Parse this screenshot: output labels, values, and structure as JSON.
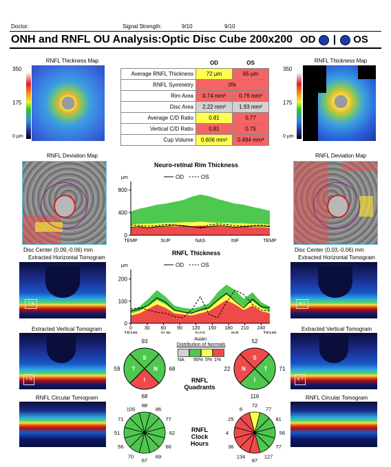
{
  "header": {
    "doctor_label": "Doctor:",
    "signal_label": "Signal Strength:",
    "signal_od": "9/10",
    "signal_os": "9/10",
    "title": "ONH and RNFL OU Analysis:Optic Disc Cube 200x200",
    "od": "OD",
    "os": "OS"
  },
  "thickness_map": {
    "title": "RNFL Thickness Map",
    "scale": [
      "350",
      "175",
      "0 µm"
    ]
  },
  "params": {
    "col_od": "OD",
    "col_os": "OS",
    "rows": [
      {
        "label": "Average RNFL Thickness",
        "od": "72 µm",
        "os": "65 µm",
        "od_color": "#ffff50",
        "os_color": "#f36464"
      },
      {
        "label": "RNFL Symmetry",
        "merged": "0%",
        "color": "#f36464"
      },
      {
        "label": "Rim Area",
        "od": "0.74 mm²",
        "os": "0.76 mm²",
        "od_color": "#f36464",
        "os_color": "#f36464"
      },
      {
        "label": "Disc Area",
        "od": "2.22 mm²",
        "os": "1.93 mm²",
        "od_color": "#d2d2d2",
        "os_color": "#d2d2d2"
      },
      {
        "label": "Average C/D Ratio",
        "od": "0.81",
        "os": "0.77",
        "od_color": "#ffff50",
        "os_color": "#f36464"
      },
      {
        "label": "Vertical C/D Ratio",
        "od": "0.81",
        "os": "0.75",
        "od_color": "#f36464",
        "os_color": "#f36464"
      },
      {
        "label": "Cup Volume",
        "od": "0.606 mm³",
        "os": "0.494 mm³",
        "od_color": "#ffff50",
        "os_color": "#f36464"
      }
    ]
  },
  "deviation": {
    "title": "RNFL Deviation Map",
    "od_center": "Disc Center  (0.09,-0.06) mm",
    "os_center": "Disc Center  (0.03,-0.06) mm"
  },
  "tomograms": {
    "horizontal": "Extracted Horizontal Tomogram",
    "vertical": "Extracted Vertical Tomogram",
    "circular": "RNFL Circular Tomogram",
    "h_letters": [
      "T",
      "N"
    ],
    "h_letters_os": [
      "N",
      "T"
    ],
    "v_letters": [
      "T",
      "N"
    ]
  },
  "rim_chart": {
    "title": "Neuro-retinal Rim Thickness",
    "unit": "µm",
    "legend_od": "OD",
    "legend_os": "OS",
    "y_ticks": [
      "800",
      "400",
      "0"
    ],
    "x_ticks": [
      "TEMP",
      "SUP",
      "NAS",
      "INF",
      "TEMP"
    ]
  },
  "rnfl_chart": {
    "title": "RNFL Thickness",
    "unit": "µm",
    "legend_od": "OD",
    "legend_os": "OS",
    "y_ticks": [
      "200",
      "100",
      "0"
    ],
    "x_numbers": [
      "0",
      "30",
      "60",
      "90",
      "120",
      "150",
      "180",
      "210",
      "240"
    ],
    "x_ticks": [
      "TEMP",
      "SUP",
      "NAS",
      "INF",
      "TEMP"
    ]
  },
  "chart_data": [
    {
      "type": "area",
      "title": "Neuro-retinal Rim Thickness",
      "ylabel": "µm",
      "ylim": [
        0,
        900
      ],
      "x": [
        0,
        16,
        32,
        48,
        64,
        80,
        96,
        112,
        128,
        144,
        160,
        176,
        192,
        208,
        224,
        240,
        256
      ],
      "x_tick_labels": [
        "TEMP",
        "SUP",
        "NAS",
        "INF",
        "TEMP"
      ],
      "series": [
        {
          "name": "OD",
          "values": [
            140,
            150,
            130,
            150,
            160,
            180,
            170,
            150,
            130,
            150,
            170,
            160,
            140,
            150,
            160,
            160,
            150
          ]
        },
        {
          "name": "OS",
          "values": [
            180,
            170,
            160,
            170,
            190,
            180,
            160,
            150,
            140,
            180,
            200,
            190,
            170,
            160,
            170,
            180,
            170
          ]
        }
      ]
    },
    {
      "type": "area",
      "title": "RNFL Thickness",
      "ylabel": "µm",
      "ylim": [
        0,
        230
      ],
      "x": [
        0,
        16,
        32,
        48,
        64,
        80,
        96,
        112,
        128,
        144,
        160,
        176,
        192,
        208,
        224,
        240,
        256
      ],
      "x_tick_labels": [
        "TEMP",
        "SUP",
        "NAS",
        "INF",
        "TEMP"
      ],
      "series": [
        {
          "name": "OD",
          "values": [
            55,
            65,
            80,
            115,
            95,
            60,
            50,
            45,
            60,
            70,
            105,
            135,
            100,
            70,
            110,
            75,
            70
          ]
        },
        {
          "name": "OS",
          "values": [
            65,
            70,
            60,
            50,
            45,
            30,
            25,
            60,
            120,
            40,
            25,
            95,
            150,
            130,
            85,
            60,
            55
          ]
        }
      ]
    }
  ],
  "quadrants": {
    "normals_title": "Asian:",
    "normals_sub": "Distribution of Normals",
    "normals_labels": [
      "NA",
      "95%",
      "5%",
      "1%"
    ],
    "center_label_1": "RNFL",
    "center_label_2": "Quadrants",
    "od": {
      "s": "93",
      "t": "59",
      "n": "68",
      "i": "68",
      "letters": [
        "S",
        "T",
        "N",
        "I"
      ],
      "colors": {
        "s": "#4ec84e",
        "t": "#4ec84e",
        "n": "#4ec84e",
        "i": "#ef4a4a"
      }
    },
    "os": {
      "s": "52",
      "n": "22",
      "t": "71",
      "i": "116",
      "letters": [
        "S",
        "N",
        "T",
        "I"
      ],
      "colors": {
        "s": "#ef4a4a",
        "n": "#ef4a4a",
        "t": "#4ec84e",
        "i": "#4ec84e"
      }
    }
  },
  "clock": {
    "center_label_1": "RNFL",
    "center_label_2": "Clock",
    "center_label_3": "Hours",
    "od_values": [
      "88",
      "86",
      "77",
      "62",
      "66",
      "69",
      "67",
      "70",
      "56",
      "51",
      "71",
      "105"
    ],
    "od_colors": [
      "#4ec84e",
      "#4ec84e",
      "#4ec84e",
      "#4ec84e",
      "#4ec84e",
      "#4ec84e",
      "#4ec84e",
      "#4ec84e",
      "#4ec84e",
      "#4ec84e",
      "#4ec84e",
      "#4ec84e"
    ],
    "os_values": [
      "72",
      "77",
      "81",
      "56",
      "77",
      "127",
      "87",
      "134",
      "36",
      "4",
      "25",
      "8"
    ],
    "os_colors": [
      "#ffff50",
      "#4ec84e",
      "#4ec84e",
      "#4ec84e",
      "#4ec84e",
      "#4ec84e",
      "#ef4a4a",
      "#ef4a4a",
      "#ef4a4a",
      "#ef4a4a",
      "#ef4a4a",
      "#ef4a4a"
    ]
  }
}
